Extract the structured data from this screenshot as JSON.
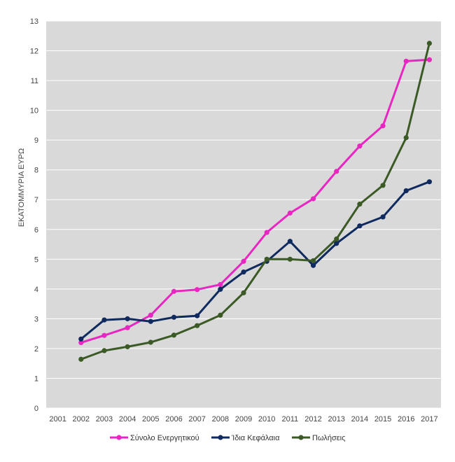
{
  "chart_data": {
    "type": "line",
    "title": "",
    "xlabel": "",
    "ylabel": "ΕΚΑΤΟΜΜΥΡΙΑ ΕΥΡΩ",
    "categories": [
      "2001",
      "2002",
      "2003",
      "2004",
      "2005",
      "2006",
      "2007",
      "2008",
      "2009",
      "2010",
      "2011",
      "2012",
      "2013",
      "2014",
      "2015",
      "2016",
      "2017"
    ],
    "yticks": [
      "0",
      "1",
      "2",
      "3",
      "4",
      "5",
      "6",
      "7",
      "8",
      "9",
      "10",
      "11",
      "12",
      "13"
    ],
    "ylim": [
      0,
      13
    ],
    "grid": true,
    "legend_position": "bottom",
    "series": [
      {
        "name": "Σύνολο Ενεργητικού",
        "color": "#e826c2",
        "values": [
          null,
          2.2,
          2.44,
          2.7,
          3.12,
          3.92,
          3.98,
          4.15,
          4.93,
          5.9,
          6.55,
          7.03,
          7.95,
          8.8,
          9.48,
          11.65,
          11.7
        ]
      },
      {
        "name": "Ίδια Κεφάλαια",
        "color": "#0f2a5e",
        "values": [
          null,
          2.32,
          2.96,
          3.0,
          2.91,
          3.05,
          3.1,
          3.99,
          4.57,
          4.93,
          5.6,
          4.79,
          5.53,
          6.12,
          6.42,
          7.3,
          7.6
        ]
      },
      {
        "name": "Πωλήσεις",
        "color": "#3b5a25",
        "values": [
          null,
          1.64,
          1.93,
          2.06,
          2.21,
          2.45,
          2.77,
          3.12,
          3.87,
          5.0,
          5.0,
          4.95,
          5.68,
          6.85,
          7.48,
          9.08,
          12.25
        ]
      }
    ],
    "plot_background": "#d9d9d9",
    "gridline_color": "#ffffff"
  }
}
